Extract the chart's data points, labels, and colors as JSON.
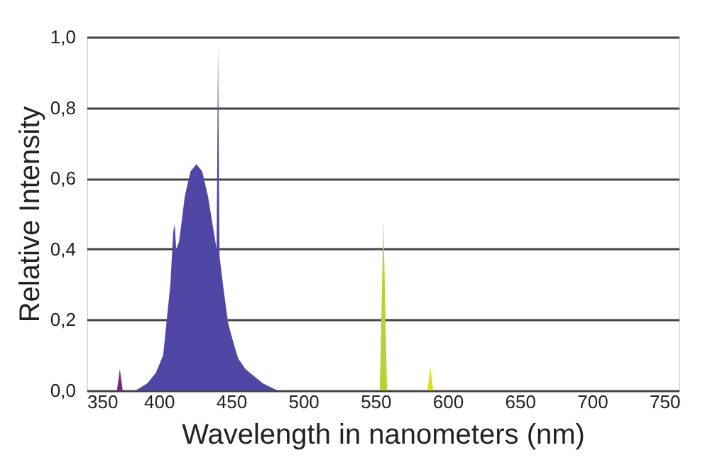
{
  "chart_data": {
    "type": "area",
    "xlabel": "Wavelength in nanometers (nm)",
    "ylabel": "Relative  Intensity",
    "xlim": [
      350,
      760
    ],
    "xticks": [
      350,
      400,
      450,
      500,
      550,
      600,
      650,
      700,
      750
    ],
    "ylim": [
      0,
      1
    ],
    "yticks": [
      {
        "value": 0,
        "label": "0,0"
      },
      {
        "value": 0.2,
        "label": "0,2"
      },
      {
        "value": 0.4,
        "label": "0,4"
      },
      {
        "value": 0.6,
        "label": "0,6"
      },
      {
        "value": 0.8,
        "label": "0,8"
      },
      {
        "value": 1,
        "label": "1,0"
      }
    ],
    "grid": "y",
    "legend": false,
    "series": [
      {
        "color": "#4f46a6",
        "x": [
          384,
          392,
          398,
          403,
          408,
          410,
          411,
          412,
          414,
          418,
          422,
          426,
          430,
          434,
          438,
          440,
          441,
          442,
          445,
          448,
          452,
          455,
          460,
          466,
          472,
          482
        ],
        "values": [
          0,
          0.02,
          0.05,
          0.1,
          0.3,
          0.45,
          0.47,
          0.4,
          0.42,
          0.55,
          0.62,
          0.64,
          0.62,
          0.55,
          0.45,
          0.4,
          0.97,
          0.38,
          0.28,
          0.19,
          0.13,
          0.09,
          0.06,
          0.04,
          0.02,
          0
        ]
      },
      {
        "color": "#7a2a7a",
        "x": [
          371,
          373,
          375
        ],
        "values": [
          0,
          0.06,
          0
        ]
      },
      {
        "color": "#b5d334",
        "x": [
          553,
          555.5,
          558
        ],
        "values": [
          0,
          0.48,
          0
        ]
      },
      {
        "color": "#dede20",
        "x": [
          586,
          588,
          590
        ],
        "values": [
          0,
          0.065,
          0
        ]
      }
    ]
  }
}
